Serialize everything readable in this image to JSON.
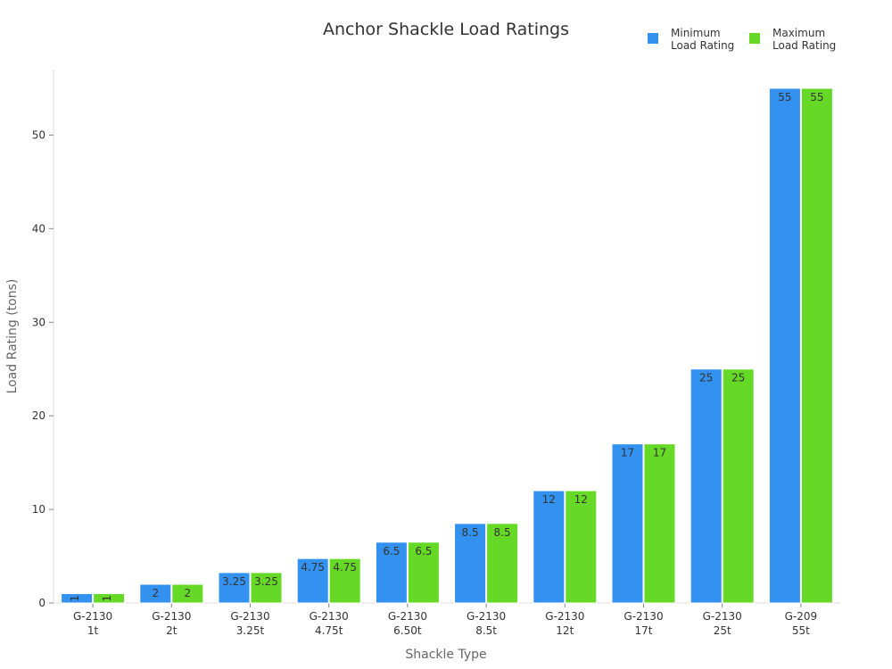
{
  "chart_data": {
    "type": "bar",
    "title": "Anchor Shackle Load Ratings",
    "xlabel": "Shackle Type",
    "ylabel": "Load Rating (tons)",
    "categories": [
      [
        "G-2130",
        "1t"
      ],
      [
        "G-2130",
        "2t"
      ],
      [
        "G-2130",
        "3.25t"
      ],
      [
        "G-2130",
        "4.75t"
      ],
      [
        "G-2130",
        "6.50t"
      ],
      [
        "G-2130",
        "8.5t"
      ],
      [
        "G-2130",
        "12t"
      ],
      [
        "G-2130",
        "17t"
      ],
      [
        "G-2130",
        "25t"
      ],
      [
        "G-209",
        "55t"
      ]
    ],
    "series": [
      {
        "name": [
          "Minimum",
          "Load Rating"
        ],
        "color": "#3391f0",
        "values": [
          1,
          2,
          3.25,
          4.75,
          6.5,
          8.5,
          12,
          17,
          25,
          55
        ]
      },
      {
        "name": [
          "Maximum",
          "Load Rating"
        ],
        "color": "#65d926",
        "values": [
          1,
          2,
          3.25,
          4.75,
          6.5,
          8.5,
          12,
          17,
          25,
          55
        ]
      }
    ],
    "ylim": [
      0,
      57
    ],
    "yticks": [
      0,
      10,
      20,
      30,
      40,
      50
    ],
    "legend_position": "top-right",
    "grid": false
  }
}
